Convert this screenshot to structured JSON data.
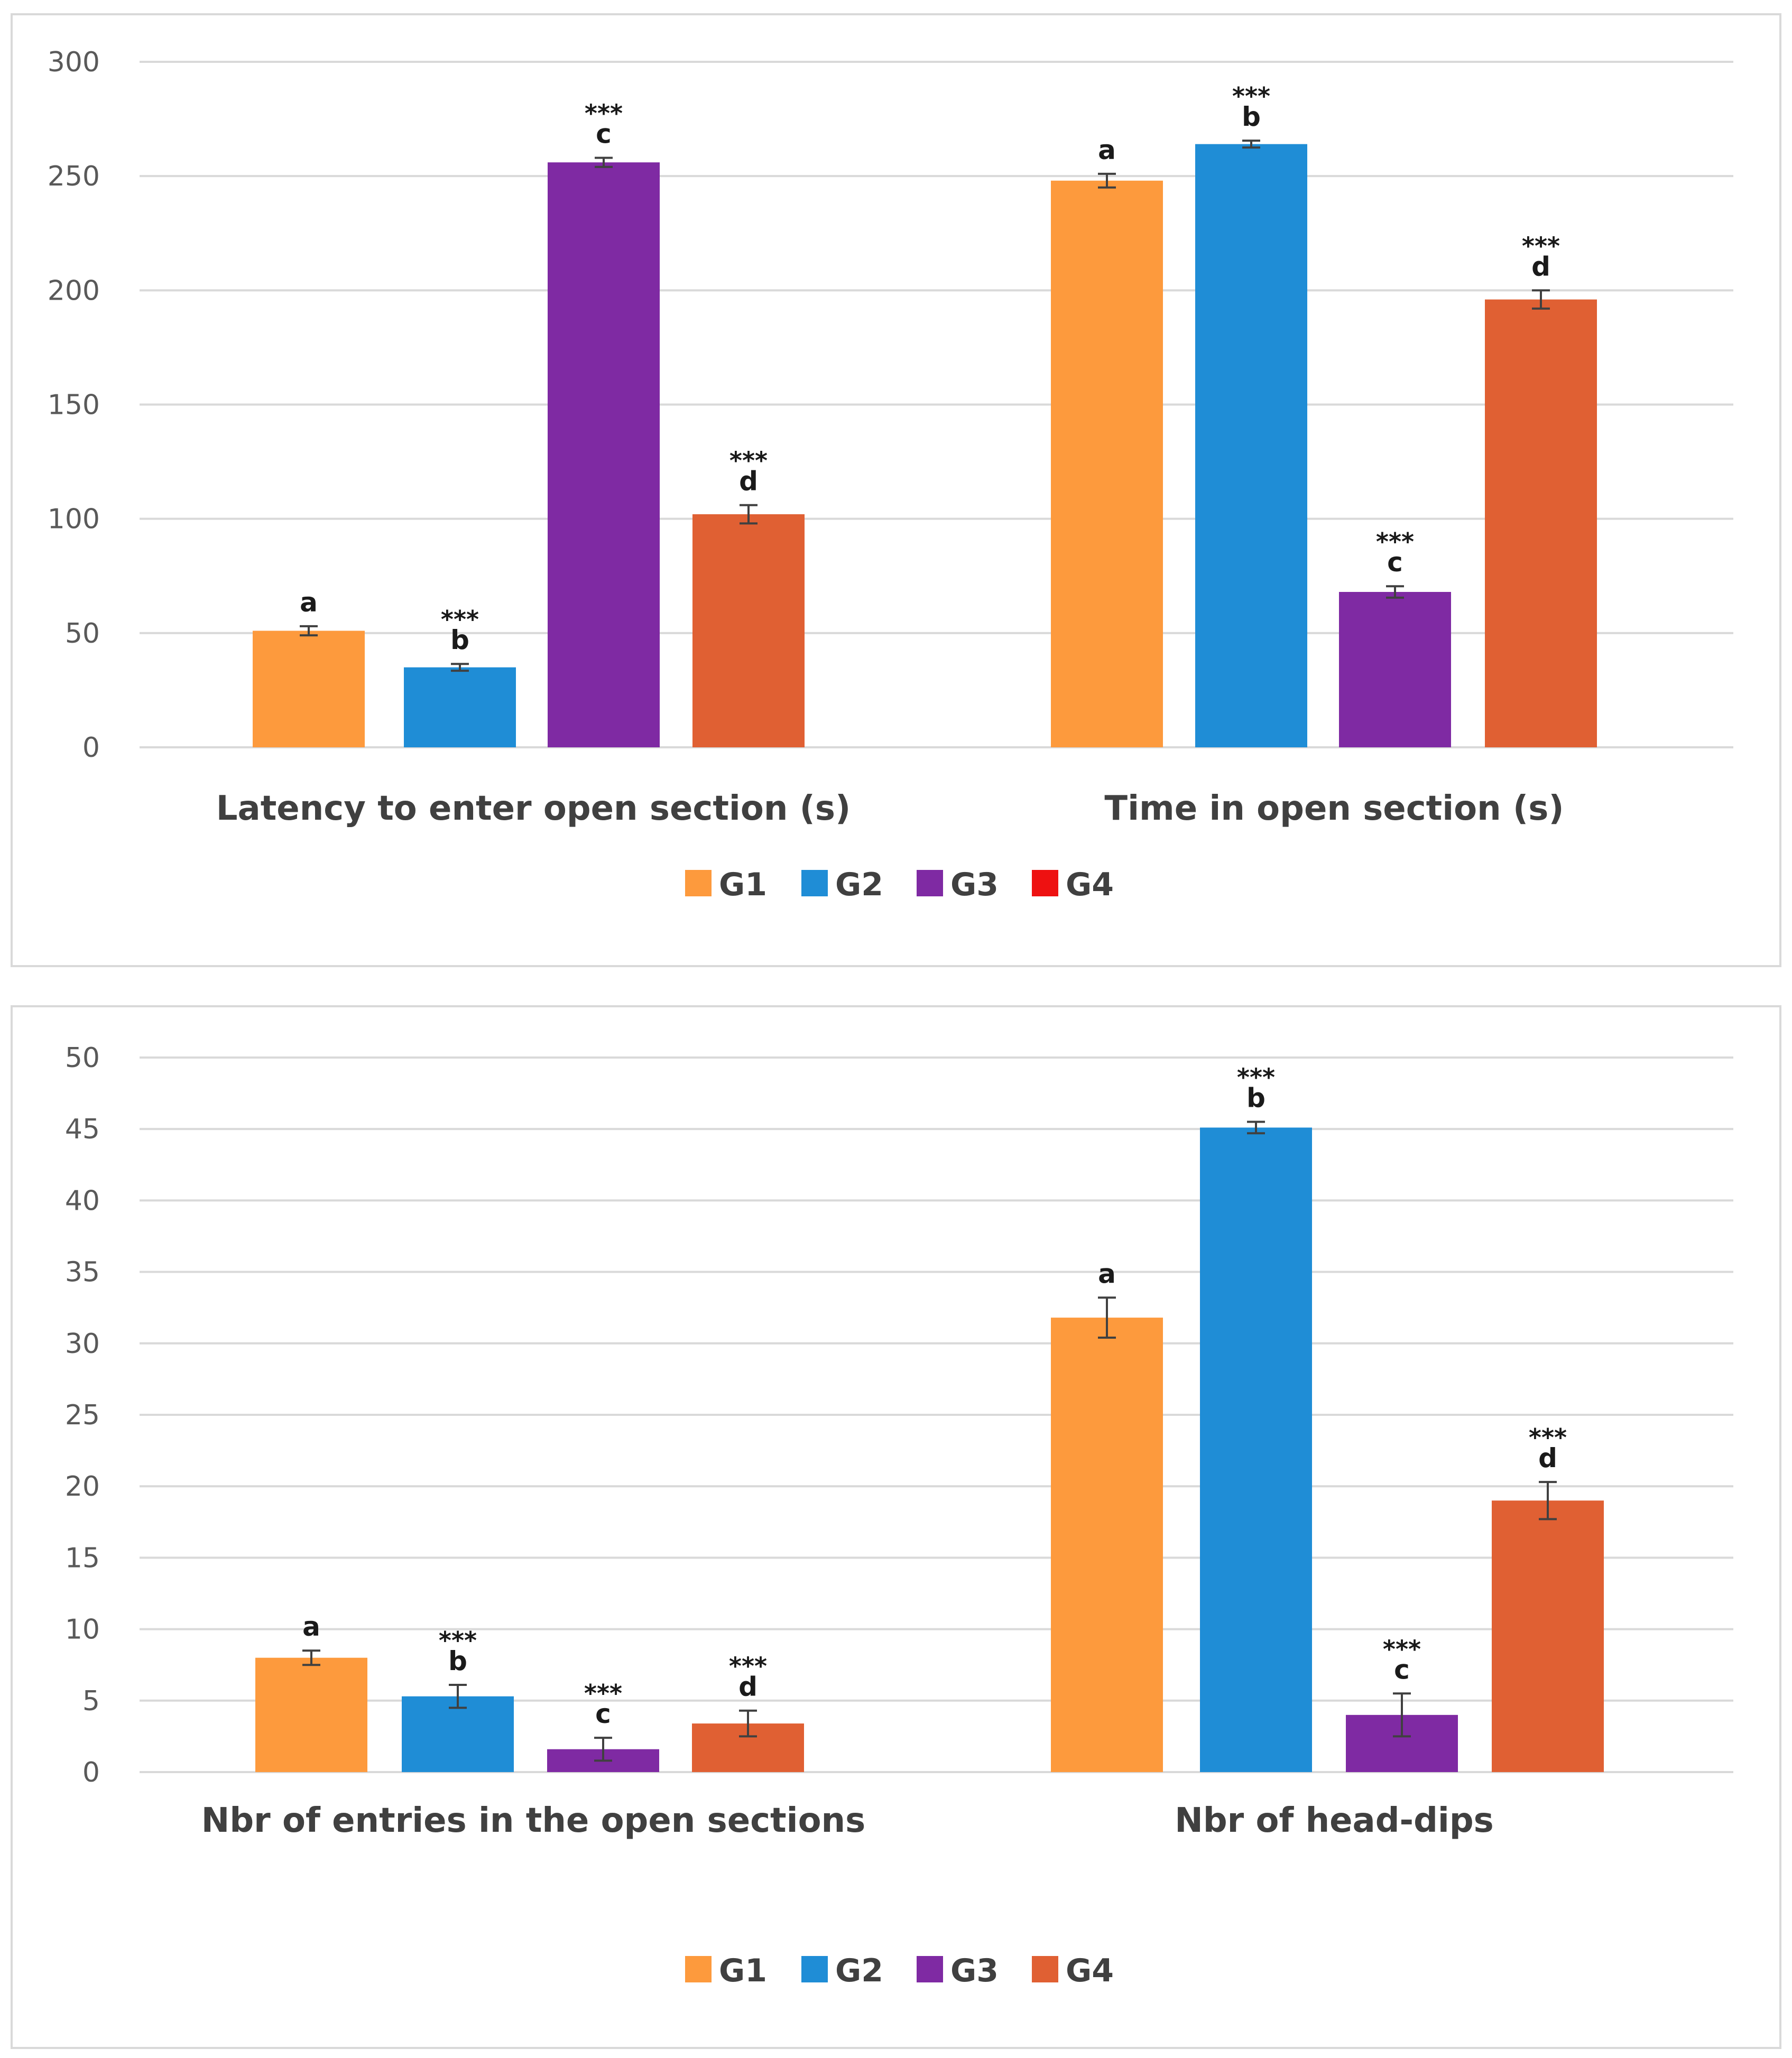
{
  "colors": {
    "G1": "#fd9a3d",
    "G2": "#1f8dd6",
    "G3": "#7f2aa3",
    "G4": "#e06033",
    "G4_legend_top": "#ee1111",
    "grid": "#d9d9d9",
    "axis_text": "#595959",
    "label_text": "#404040",
    "annotation_text": "#1a1a1a",
    "error_bar": "#404040"
  },
  "chart_data": [
    {
      "type": "bar",
      "title": "",
      "xlabel": "",
      "ylabel": "",
      "ylim": [
        0,
        300
      ],
      "yticks": [
        "0",
        "50",
        "100",
        "150",
        "200",
        "250",
        "300"
      ],
      "grid": true,
      "legend_position": "bottom",
      "legend": [
        "G1",
        "G2",
        "G3",
        "G4"
      ],
      "categories": [
        "Latency to enter open section (s)",
        "Time in open section (s)"
      ],
      "series": [
        {
          "name": "G1",
          "values": [
            51,
            248
          ],
          "errors": [
            2,
            3
          ],
          "letters": [
            "a",
            "a"
          ],
          "stars": [
            "",
            ""
          ]
        },
        {
          "name": "G2",
          "values": [
            35,
            264
          ],
          "errors": [
            1.5,
            1.5
          ],
          "letters": [
            "b",
            "b"
          ],
          "stars": [
            "***",
            "***"
          ]
        },
        {
          "name": "G3",
          "values": [
            256,
            68
          ],
          "errors": [
            2,
            2.5
          ],
          "letters": [
            "c",
            "c"
          ],
          "stars": [
            "***",
            "***"
          ]
        },
        {
          "name": "G4",
          "values": [
            102,
            196
          ],
          "errors": [
            4,
            4
          ],
          "letters": [
            "d",
            "d"
          ],
          "stars": [
            "***",
            "***"
          ]
        }
      ]
    },
    {
      "type": "bar",
      "title": "",
      "xlabel": "",
      "ylabel": "",
      "ylim": [
        0,
        50
      ],
      "yticks": [
        "0",
        "5",
        "10",
        "15",
        "20",
        "25",
        "30",
        "35",
        "40",
        "45",
        "50"
      ],
      "grid": true,
      "legend_position": "bottom",
      "legend": [
        "G1",
        "G2",
        "G3",
        "G4"
      ],
      "categories": [
        "Nbr of entries in the open sections",
        "Nbr of head-dips"
      ],
      "series": [
        {
          "name": "G1",
          "values": [
            8,
            31.8
          ],
          "errors": [
            0.5,
            1.4
          ],
          "letters": [
            "a",
            "a"
          ],
          "stars": [
            "",
            ""
          ]
        },
        {
          "name": "G2",
          "values": [
            5.3,
            45.1
          ],
          "errors": [
            0.8,
            0.4
          ],
          "letters": [
            "b",
            "b"
          ],
          "stars": [
            "***",
            "***"
          ]
        },
        {
          "name": "G3",
          "values": [
            1.6,
            4
          ],
          "errors": [
            0.8,
            1.5
          ],
          "letters": [
            "c",
            "c"
          ],
          "stars": [
            "***",
            "***"
          ]
        },
        {
          "name": "G4",
          "values": [
            3.4,
            19
          ],
          "errors": [
            0.9,
            1.3
          ],
          "letters": [
            "d",
            "d"
          ],
          "stars": [
            "***",
            "***"
          ]
        }
      ]
    }
  ]
}
